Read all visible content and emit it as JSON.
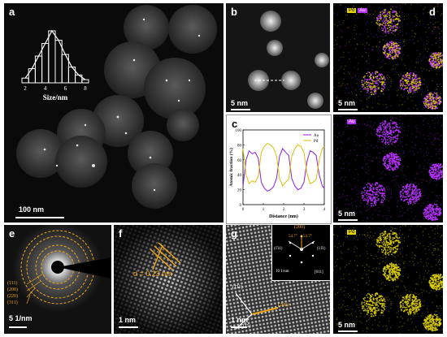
{
  "panel_labels": {
    "a": "a",
    "b": "b",
    "c": "c",
    "d": "d",
    "e": "e",
    "f": "f",
    "g": "g"
  },
  "scale_bars": {
    "a": "100 nm",
    "b": "5 nm",
    "d1": "5 nm",
    "d2": "5 nm",
    "d3": "5 nm",
    "e": "5 1/nm",
    "f": "1 nm",
    "g": "1 nm",
    "g_inset": "10 1/nm"
  },
  "hist": {
    "xlabel": "Size/nm",
    "ticks": [
      "2",
      "4",
      "6",
      "8"
    ],
    "values": [
      3,
      9,
      17,
      25,
      33,
      27,
      18,
      10,
      5,
      2
    ]
  },
  "map_legends": {
    "d1a": "Pd",
    "d1b": "Au",
    "d2": "Au",
    "d3": "Pd"
  },
  "chart_data": {
    "type": "line",
    "xlabel": "Distance (nm)",
    "ylabel": "Atomic fraction (%)",
    "xticks": [
      "0",
      "1",
      "2",
      "3",
      "4"
    ],
    "yticks": [
      "0",
      "20",
      "40",
      "60",
      "80",
      "100"
    ],
    "xlim": [
      0,
      4
    ],
    "ylim": [
      0,
      100
    ],
    "series": [
      {
        "name": "Au",
        "color": "#8b1fd6",
        "x": [
          0,
          0.15,
          0.3,
          0.45,
          0.6,
          0.75,
          0.9,
          1.05,
          1.2,
          1.35,
          1.5,
          1.65,
          1.8,
          1.95,
          2.1,
          2.25,
          2.4,
          2.55,
          2.7,
          2.85,
          3.0,
          3.15,
          3.3,
          3.45,
          3.6,
          3.75,
          3.9,
          4.0
        ],
        "values": [
          25,
          60,
          72,
          68,
          70,
          62,
          30,
          22,
          18,
          20,
          24,
          35,
          65,
          75,
          70,
          66,
          35,
          25,
          20,
          22,
          30,
          58,
          72,
          70,
          66,
          40,
          25,
          22
        ]
      },
      {
        "name": "Pd",
        "color": "#d7c100",
        "x": [
          0,
          0.15,
          0.3,
          0.45,
          0.6,
          0.75,
          0.9,
          1.05,
          1.2,
          1.35,
          1.5,
          1.65,
          1.8,
          1.95,
          2.1,
          2.25,
          2.4,
          2.55,
          2.7,
          2.85,
          3.0,
          3.15,
          3.3,
          3.45,
          3.6,
          3.75,
          3.9,
          4.0
        ],
        "values": [
          75,
          40,
          28,
          32,
          30,
          38,
          70,
          78,
          82,
          80,
          76,
          65,
          35,
          25,
          30,
          34,
          65,
          75,
          80,
          78,
          70,
          42,
          28,
          30,
          34,
          60,
          75,
          78
        ]
      }
    ]
  },
  "saed": {
    "rings": [
      "(111)",
      "(200)",
      "(220)",
      "(311)"
    ]
  },
  "hrtem_f": {
    "dspacing": "d = 0.23 nm"
  },
  "hrtem_g": {
    "inset_top": "(200)",
    "inset_angles": [
      "54.7°",
      "54.7°"
    ],
    "inset_left": "(1̄11)",
    "inset_right": "(11̄1)",
    "inset_zone": "[011]",
    "main_labels": [
      "(1̄11)",
      "(200)",
      "(11̄1)"
    ]
  },
  "colors": {
    "au": "#b833ff",
    "pd": "#e3d400",
    "accent": "#f2a516"
  }
}
